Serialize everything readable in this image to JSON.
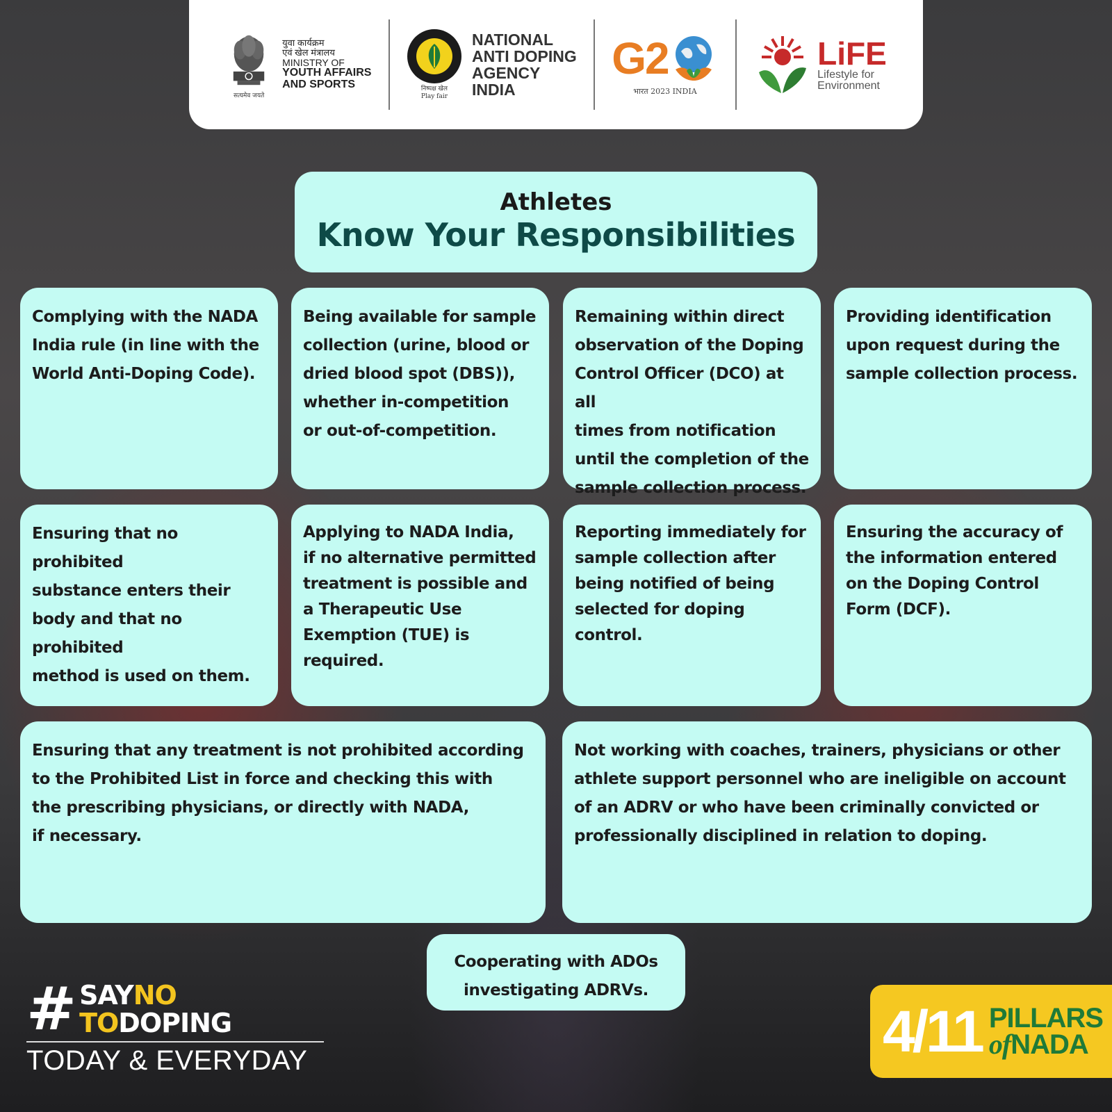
{
  "header": {
    "ministry": {
      "hindi_line1": "युवा कार्यक्रम",
      "hindi_line2": "एवं खेल मंत्रालय",
      "line1": "MINISTRY OF",
      "line2": "YOUTH AFFAIRS",
      "line3": "AND SPORTS",
      "emblem_caption": "सत्यमेव जयते"
    },
    "nada": {
      "line1": "NATIONAL",
      "line2": "ANTI DOPING",
      "line3": "AGENCY",
      "line4": "INDIA",
      "caption_hindi": "निष्पक्ष खेल",
      "caption_en": "Play fair"
    },
    "g20": {
      "title_g": "G2",
      "caption": "भारत 2023 INDIA"
    },
    "life": {
      "title": "LiFE",
      "sub1": "Lifestyle for",
      "sub2": "Environment"
    }
  },
  "title": {
    "top": "Athletes",
    "main": "Know Your Responsibilities"
  },
  "cards": [
    {
      "lines": [
        "Complying with the NADA",
        "India rule (in line with the",
        "World Anti-Doping Code)."
      ]
    },
    {
      "lines": [
        "Being available for sample",
        "collection (urine, blood or",
        "dried blood spot (DBS)),",
        "whether in-competition",
        "or out-of-competition."
      ]
    },
    {
      "lines": [
        "Remaining within direct",
        "observation of the Doping",
        "Control Officer (DCO) at all",
        "times from notification",
        "until the completion of the",
        "sample collection process."
      ]
    },
    {
      "lines": [
        "Providing identification",
        "upon request during the",
        "sample collection process."
      ]
    },
    {
      "lines": [
        "Ensuring that no prohibited",
        "substance enters their",
        "body and that no prohibited",
        "method is used on them."
      ]
    },
    {
      "lines": [
        "Applying to NADA India,",
        "if no alternative permitted",
        "treatment is possible and",
        "a Therapeutic Use",
        "Exemption (TUE) is",
        "required."
      ]
    },
    {
      "lines": [
        "Reporting immediately for",
        "sample collection after",
        "being notified of being",
        "selected for doping control."
      ]
    },
    {
      "lines": [
        "Ensuring the accuracy of",
        "the information entered",
        "on the Doping Control",
        "Form (DCF)."
      ]
    },
    {
      "lines": [
        "Ensuring that any treatment is not prohibited according",
        "to the Prohibited List in force and checking this with",
        "the prescribing physicians, or directly with NADA,",
        "if necessary."
      ]
    },
    {
      "lines": [
        "Not working with coaches, trainers, physicians or other",
        "athlete support personnel who are ineligible on account",
        "of an ADRV or who have been criminally convicted or",
        "professionally disciplined in relation to doping."
      ]
    },
    {
      "lines": [
        "Cooperating with ADOs",
        "investigating ADRVs."
      ]
    }
  ],
  "campaign": {
    "hash": "#",
    "say": "SAY",
    "no": "NO",
    "to": "TO",
    "doping": "DOPING",
    "tagline": "TODAY & EVERYDAY"
  },
  "pillars": {
    "count": "4/11",
    "word1": "PILLARS",
    "of": "of",
    "word2": "NADA"
  },
  "colors": {
    "card_bg": "#c4fbf3",
    "title_accent": "#0e4a47",
    "campaign_yellow": "#f3c41f",
    "pillars_bg": "#f5c821",
    "pillars_green": "#1f7a38"
  }
}
